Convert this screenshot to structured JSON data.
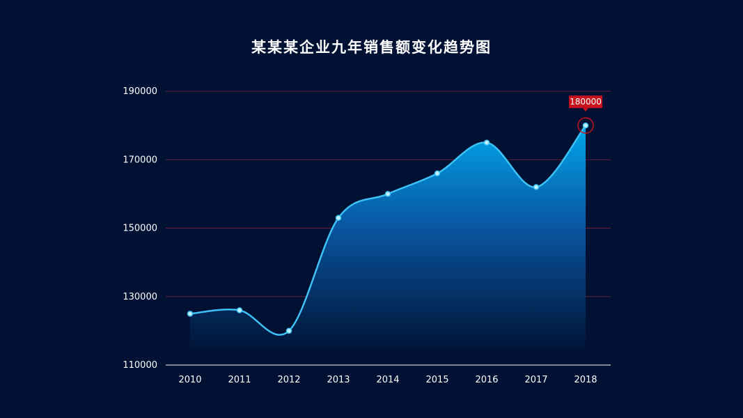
{
  "chart_data": {
    "type": "area",
    "title": "某某某企业九年销售额变化趋势图",
    "x": [
      "2010",
      "2011",
      "2012",
      "2013",
      "2014",
      "2015",
      "2016",
      "2017",
      "2018"
    ],
    "values": [
      125000,
      126000,
      120000,
      153000,
      160000,
      166000,
      175000,
      162000,
      180000
    ],
    "ylim": [
      110000,
      190000
    ],
    "yticks": [
      "110000",
      "130000",
      "150000",
      "170000",
      "190000"
    ],
    "grid": true,
    "highlight": {
      "category": "2018",
      "label": "180000"
    },
    "colors": {
      "background": "#001134",
      "line": "#3ec2f6",
      "area_top": "#00a8ec",
      "grid": "#6b1d3a",
      "badge": "#c8111f"
    }
  }
}
